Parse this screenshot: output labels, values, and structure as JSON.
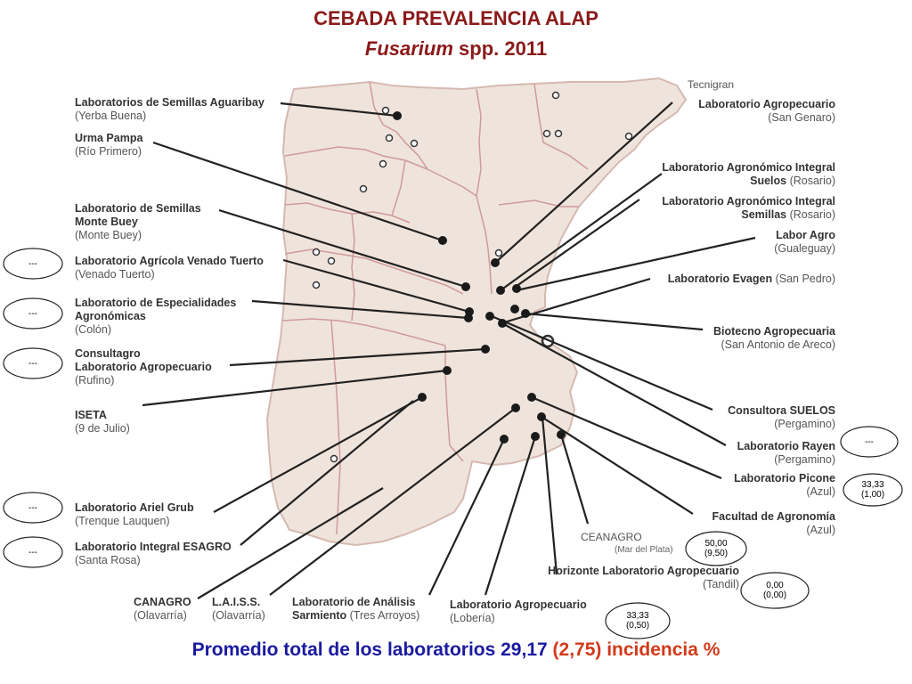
{
  "title": {
    "line1": "CEBADA PREVALENCIA ALAP",
    "italic": "Fusarium",
    "rest": " spp. 2011"
  },
  "colors": {
    "title": "#8b1a1a",
    "footer_blue": "#1a1aa0",
    "footer_red": "#d23a1a",
    "map_fill": "#efe4dc",
    "map_border": "#d19a9a"
  },
  "labs_left": [
    {
      "name": "Laboratorios de Semillas Aguaribay",
      "loc": "(Yerba Buena)"
    },
    {
      "name": "Urma Pampa",
      "loc": "(Río Primero)"
    },
    {
      "name": "Laboratorio de Semillas",
      "name2": "Monte Buey",
      "loc": "(Monte Buey)"
    },
    {
      "name": "Laboratorio Agrícola Venado Tuerto",
      "loc": "(Venado Tuerto)"
    },
    {
      "name": "Laboratorio de Especialidades",
      "name2": "Agronómicas",
      "loc": "(Colón)"
    },
    {
      "name": "Consultagro",
      "name2": "Laboratorio Agropecuario",
      "loc": "(Rufino)"
    },
    {
      "name": "ISETA",
      "loc": "(9 de Julio)"
    },
    {
      "name": "Laboratorio Ariel Grub",
      "loc": "(Trenque Lauquen)"
    },
    {
      "name": "Laboratorio Integral ESAGRO",
      "loc": "(Santa Rosa)"
    }
  ],
  "labs_right": [
    {
      "name": "Laboratorio Agropecuario",
      "loc": "(San Genaro)"
    },
    {
      "name": "Laboratorio Agronómico Integral",
      "name2b": "Suelos",
      "loc": "(Rosario)"
    },
    {
      "name": "Laboratorio Agronómico Integral",
      "name2b": "Semillas",
      "loc": "(Rosario)"
    },
    {
      "name": "Labor Agro",
      "loc": "(Gualeguay)"
    },
    {
      "name": "Laboratorio Evagen",
      "loc": "(San Pedro)"
    },
    {
      "name": "Biotecno Agropecuaria",
      "loc": "(San Antonio de Areco)"
    },
    {
      "name": "Consultora SUELOS",
      "loc": "(Pergamino)"
    },
    {
      "name": "Laboratorio Rayen",
      "loc": "(Pergamino)"
    },
    {
      "name": "Laboratorio Picone",
      "loc": "(Azul)"
    },
    {
      "name": "Facultad de Agronomía",
      "loc": "(Azul)"
    },
    {
      "name": "Horizonte Laboratorio Agropecuario",
      "loc": "(Tandil)"
    }
  ],
  "labs_bottom": [
    {
      "name": "CANAGRO",
      "loc": "(Olavarría)"
    },
    {
      "name": "L.A.I.S.S.",
      "loc": "(Olavarría)"
    },
    {
      "name": "Laboratorio de Análisis",
      "name2": "Sarmiento",
      "loc2": "(Tres Arroyos)"
    },
    {
      "name": "Laboratorio Agropecuario",
      "loc": "(Lobería)"
    }
  ],
  "tecnigran": "Tecnigran",
  "ceanagro": {
    "name": "CEANAGRO",
    "loc": "(Mar del Plata)"
  },
  "ovals": [
    {
      "l1": "---",
      "l2": ""
    },
    {
      "l1": "---",
      "l2": ""
    },
    {
      "l1": "---",
      "l2": ""
    },
    {
      "l1": "---",
      "l2": ""
    },
    {
      "l1": "---",
      "l2": ""
    },
    {
      "l1": "---",
      "l2": ""
    },
    {
      "l1": "33,33",
      "l2": "(1,00)"
    },
    {
      "l1": "50,00",
      "l2": "(9,50)"
    },
    {
      "l1": "0,00",
      "l2": "(0,00)"
    },
    {
      "l1": "33,33",
      "l2": "(0,50)"
    }
  ],
  "footer": {
    "text": "Promedio total de los laboratorios 29,17 ",
    "red": "(2,75)",
    "suffix": " incidencia %"
  }
}
